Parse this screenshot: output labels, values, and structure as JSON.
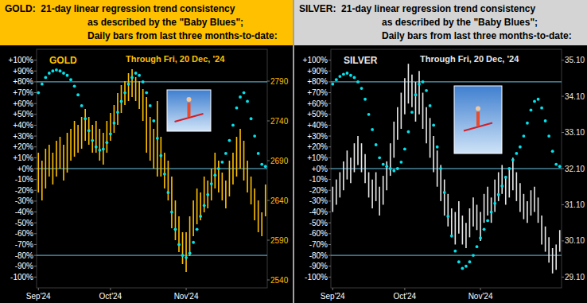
{
  "chart_data": [
    {
      "type": "range_bar",
      "title": [
        "GOLD:  21-day linear regression trend consistency",
        "as described by the \"Baby Blues\";",
        "Daily bars from last three months-to-date:"
      ],
      "subtitle": "Through Fri, 20 Dec, '24",
      "categories": [
        "Sep'24",
        null,
        null,
        null,
        null,
        null,
        null,
        null,
        null,
        null,
        null,
        null,
        null,
        null,
        null,
        null,
        null,
        null,
        null,
        null,
        "Oct'24",
        null,
        null,
        null,
        null,
        null,
        null,
        null,
        null,
        null,
        null,
        null,
        null,
        null,
        null,
        null,
        null,
        null,
        null,
        null,
        null,
        "Nov'24",
        null,
        null,
        null,
        null,
        null,
        null,
        null,
        null,
        null,
        null,
        null,
        null,
        null,
        null,
        null,
        null,
        null,
        null,
        null,
        null,
        null,
        null
      ],
      "ylim": [
        -110,
        110
      ],
      "yticks": [
        {
          "value": 100,
          "label": "+100%"
        },
        {
          "value": 90,
          "label": "+90%"
        },
        {
          "value": 80,
          "label": "+80%"
        },
        {
          "value": 70,
          "label": "+70%"
        },
        {
          "value": 60,
          "label": "+60%"
        },
        {
          "value": 50,
          "label": "+50%"
        },
        {
          "value": 40,
          "label": "+40%"
        },
        {
          "value": 30,
          "label": "+30%"
        },
        {
          "value": 20,
          "label": "+20%"
        },
        {
          "value": 10,
          "label": "+10%"
        },
        {
          "value": 0,
          "label": "+0%"
        },
        {
          "value": -10,
          "label": "-10%"
        },
        {
          "value": -20,
          "label": "-20%"
        },
        {
          "value": -30,
          "label": "-30%"
        },
        {
          "value": -40,
          "label": "-40%"
        },
        {
          "value": -50,
          "label": "-50%"
        },
        {
          "value": -60,
          "label": "-60%"
        },
        {
          "value": -70,
          "label": "-70%"
        },
        {
          "value": -80,
          "label": "-80%"
        },
        {
          "value": -90,
          "label": "-90%"
        },
        {
          "value": -100,
          "label": "-100%"
        }
      ],
      "y2lim": [
        2530,
        2830
      ],
      "y2ticks": [
        2790,
        2740,
        2690,
        2640,
        2590,
        2540
      ],
      "hlines": [
        80,
        0,
        -80
      ],
      "grid": false,
      "series": [
        {
          "type": "scatter",
          "marker": "dot",
          "color": "#00e5ee",
          "values": [
            70,
            78,
            84,
            88,
            90,
            91,
            90,
            88,
            86,
            82,
            76,
            68,
            58,
            46,
            35,
            26,
            20,
            17,
            18,
            24,
            32,
            42,
            52,
            62,
            70,
            78,
            84,
            88,
            86,
            80,
            70,
            58,
            44,
            28,
            12,
            -5,
            -22,
            -40,
            -56,
            -70,
            -80,
            -82,
            -78,
            -68,
            -56,
            -44,
            -34,
            -24,
            -14,
            -6,
            0,
            6,
            14,
            26,
            40,
            56,
            66,
            70,
            62,
            46,
            30,
            14,
            4,
            2
          ]
        },
        {
          "name": "GOLD",
          "type": "range_bar",
          "color": "#ffc000",
          "axis": "y2",
          "high": [
            2700,
            2690,
            2705,
            2710,
            2700,
            2715,
            2720,
            2710,
            2725,
            2730,
            2740,
            2735,
            2745,
            2755,
            2745,
            2735,
            2740,
            2730,
            2725,
            2740,
            2750,
            2760,
            2775,
            2785,
            2790,
            2800,
            2805,
            2795,
            2790,
            2780,
            2770,
            2745,
            2730,
            2765,
            2720,
            2700,
            2690,
            2670,
            2640,
            2620,
            2600,
            2600,
            2620,
            2640,
            2655,
            2650,
            2670,
            2665,
            2680,
            2700,
            2690,
            2675,
            2665,
            2690,
            2700,
            2720,
            2730,
            2715,
            2690,
            2670,
            2655,
            2640,
            2625,
            2660
          ],
          "low": [
            2650,
            2640,
            2655,
            2670,
            2660,
            2670,
            2680,
            2665,
            2675,
            2690,
            2695,
            2700,
            2705,
            2715,
            2710,
            2700,
            2700,
            2690,
            2685,
            2700,
            2715,
            2725,
            2735,
            2750,
            2760,
            2765,
            2770,
            2765,
            2755,
            2740,
            2700,
            2690,
            2680,
            2670,
            2670,
            2655,
            2640,
            2605,
            2590,
            2575,
            2560,
            2550,
            2570,
            2595,
            2610,
            2615,
            2625,
            2630,
            2640,
            2655,
            2650,
            2640,
            2630,
            2645,
            2660,
            2670,
            2680,
            2665,
            2650,
            2635,
            2615,
            2600,
            2595,
            2620
          ]
        }
      ]
    },
    {
      "type": "range_bar",
      "title": [
        "SILVER:  21-day linear regression trend consistency",
        "as described by the \"Baby Blues\";",
        "Daily bars from last three months-to-date:"
      ],
      "subtitle": "Through Fri, 20 Dec, '24",
      "categories": [
        "Sep'24",
        null,
        null,
        null,
        null,
        null,
        null,
        null,
        null,
        null,
        null,
        null,
        null,
        null,
        null,
        null,
        null,
        null,
        null,
        null,
        "Oct'24",
        null,
        null,
        null,
        null,
        null,
        null,
        null,
        null,
        null,
        null,
        null,
        null,
        null,
        null,
        null,
        null,
        null,
        null,
        null,
        null,
        "Nov'24",
        null,
        null,
        null,
        null,
        null,
        null,
        null,
        null,
        null,
        null,
        null,
        null,
        null,
        null,
        null,
        null,
        null,
        null,
        null,
        null,
        null,
        null
      ],
      "ylim": [
        -110,
        110
      ],
      "yticks": [
        {
          "value": 100,
          "label": "+100%"
        },
        {
          "value": 90,
          "label": "+90%"
        },
        {
          "value": 80,
          "label": "+80%"
        },
        {
          "value": 70,
          "label": "+70%"
        },
        {
          "value": 60,
          "label": "+60%"
        },
        {
          "value": 50,
          "label": "+50%"
        },
        {
          "value": 40,
          "label": "+40%"
        },
        {
          "value": 30,
          "label": "+30%"
        },
        {
          "value": 20,
          "label": "+20%"
        },
        {
          "value": 10,
          "label": "+10%"
        },
        {
          "value": 0,
          "label": "+0%"
        },
        {
          "value": -10,
          "label": "-10%"
        },
        {
          "value": -20,
          "label": "-20%"
        },
        {
          "value": -30,
          "label": "-30%"
        },
        {
          "value": -40,
          "label": "-40%"
        },
        {
          "value": -50,
          "label": "-50%"
        },
        {
          "value": -60,
          "label": "-60%"
        },
        {
          "value": -70,
          "label": "-70%"
        },
        {
          "value": -80,
          "label": "-80%"
        },
        {
          "value": -90,
          "label": "-90%"
        },
        {
          "value": -100,
          "label": "-100%"
        }
      ],
      "y2lim": [
        28.8,
        35.4
      ],
      "y2ticks": [
        {
          "value": 35.1,
          "label": "35.10"
        },
        {
          "value": 34.1,
          "label": "34.10"
        },
        {
          "value": 33.1,
          "label": "33.10"
        },
        {
          "value": 32.1,
          "label": "32.10"
        },
        {
          "value": 31.1,
          "label": "31.10"
        },
        {
          "value": 30.1,
          "label": "30.10"
        },
        {
          "value": 29.1,
          "label": "29.10"
        }
      ],
      "hlines": [
        80,
        0,
        -80
      ],
      "grid": false,
      "series": [
        {
          "type": "scatter",
          "marker": "dot",
          "color": "#00e5ee",
          "values": [
            78,
            82,
            85,
            87,
            88,
            86,
            84,
            80,
            74,
            64,
            50,
            36,
            22,
            10,
            4,
            2,
            0,
            -2,
            0,
            6,
            18,
            34,
            52,
            68,
            78,
            80,
            72,
            58,
            40,
            20,
            0,
            -22,
            -44,
            -62,
            -76,
            -86,
            -92,
            -90,
            -86,
            -80,
            -72,
            -64,
            -56,
            -48,
            -40,
            -32,
            -24,
            -16,
            -8,
            0,
            8,
            14,
            20,
            30,
            42,
            54,
            62,
            64,
            56,
            44,
            30,
            16,
            4,
            2
          ]
        },
        {
          "name": "SILVER",
          "type": "range_bar",
          "color": "#e8e8e8",
          "axis": "y2",
          "high": [
            31.6,
            31.8,
            32.0,
            32.3,
            32.6,
            32.4,
            32.8,
            33.0,
            32.8,
            32.5,
            32.0,
            31.8,
            32.0,
            31.6,
            31.9,
            32.3,
            32.8,
            33.4,
            33.8,
            34.2,
            34.6,
            35.0,
            34.7,
            34.5,
            34.8,
            34.2,
            33.8,
            33.5,
            33.0,
            32.6,
            32.2,
            31.8,
            31.4,
            31.0,
            30.9,
            31.2,
            30.8,
            30.6,
            31.0,
            31.3,
            31.1,
            30.9,
            31.4,
            31.6,
            31.3,
            31.8,
            32.0,
            32.2,
            31.9,
            32.1,
            32.4,
            32.0,
            31.7,
            31.4,
            31.2,
            31.5,
            31.6,
            31.3,
            30.8,
            30.5,
            30.2,
            29.9,
            30.0,
            30.4
          ],
          "low": [
            30.9,
            31.1,
            31.3,
            31.5,
            31.8,
            31.7,
            32.0,
            32.2,
            32.0,
            31.7,
            31.3,
            31.0,
            31.2,
            30.8,
            31.1,
            31.5,
            31.9,
            32.4,
            32.9,
            33.2,
            33.6,
            33.9,
            33.8,
            33.4,
            33.6,
            33.2,
            32.8,
            32.4,
            32.0,
            31.6,
            31.2,
            30.8,
            30.5,
            30.2,
            30.0,
            30.3,
            30.0,
            29.9,
            30.2,
            30.5,
            30.4,
            30.1,
            30.6,
            30.8,
            30.6,
            30.9,
            31.2,
            31.4,
            31.1,
            31.3,
            31.5,
            31.2,
            30.9,
            30.7,
            30.6,
            30.8,
            30.9,
            30.6,
            30.0,
            29.8,
            29.5,
            29.2,
            29.3,
            29.8
          ]
        }
      ]
    }
  ]
}
